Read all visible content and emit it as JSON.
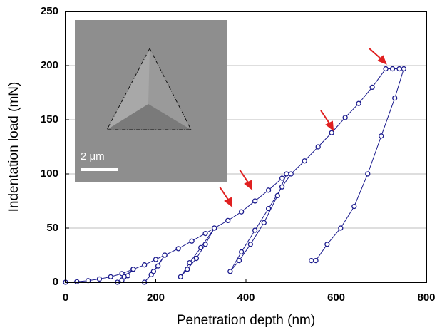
{
  "chart_data": {
    "type": "scatter",
    "xlabel": "Penetration depth (nm)",
    "ylabel": "Indentation load (mN)",
    "annotation": "2 μm",
    "color": "#1c1c8e",
    "x": [
      0,
      25,
      50,
      75,
      100,
      125,
      150,
      138,
      125,
      115,
      130,
      150,
      175,
      200,
      220,
      205,
      190,
      175,
      195,
      220,
      250,
      280,
      310,
      330,
      310,
      290,
      270,
      255,
      275,
      300,
      330,
      360,
      390,
      420,
      450,
      480,
      490,
      470,
      440,
      410,
      385,
      365,
      390,
      420,
      450,
      480,
      500,
      530,
      560,
      590,
      620,
      650,
      680,
      710,
      725,
      740,
      750,
      730,
      700,
      670,
      640,
      610,
      580,
      555,
      545
    ],
    "values": [
      0,
      0.5,
      1.5,
      3,
      5,
      8,
      12,
      6,
      2,
      0,
      5,
      12,
      16,
      21,
      25,
      15,
      7,
      0,
      10,
      25,
      31,
      38,
      45,
      50,
      35,
      22,
      12,
      5,
      18,
      32,
      50,
      57,
      65,
      75,
      85,
      96,
      100,
      80,
      55,
      35,
      20,
      10,
      28,
      48,
      68,
      88,
      100,
      112,
      125,
      138,
      152,
      165,
      180,
      197,
      197,
      197,
      197,
      170,
      135,
      100,
      70,
      50,
      35,
      20,
      20
    ],
    "xlim": [
      0,
      800
    ],
    "xticks": [
      0,
      200,
      400,
      600,
      800
    ],
    "ylim": [
      0,
      250
    ],
    "yticks": [
      0,
      50,
      100,
      150,
      200,
      250
    ],
    "grid": true
  }
}
